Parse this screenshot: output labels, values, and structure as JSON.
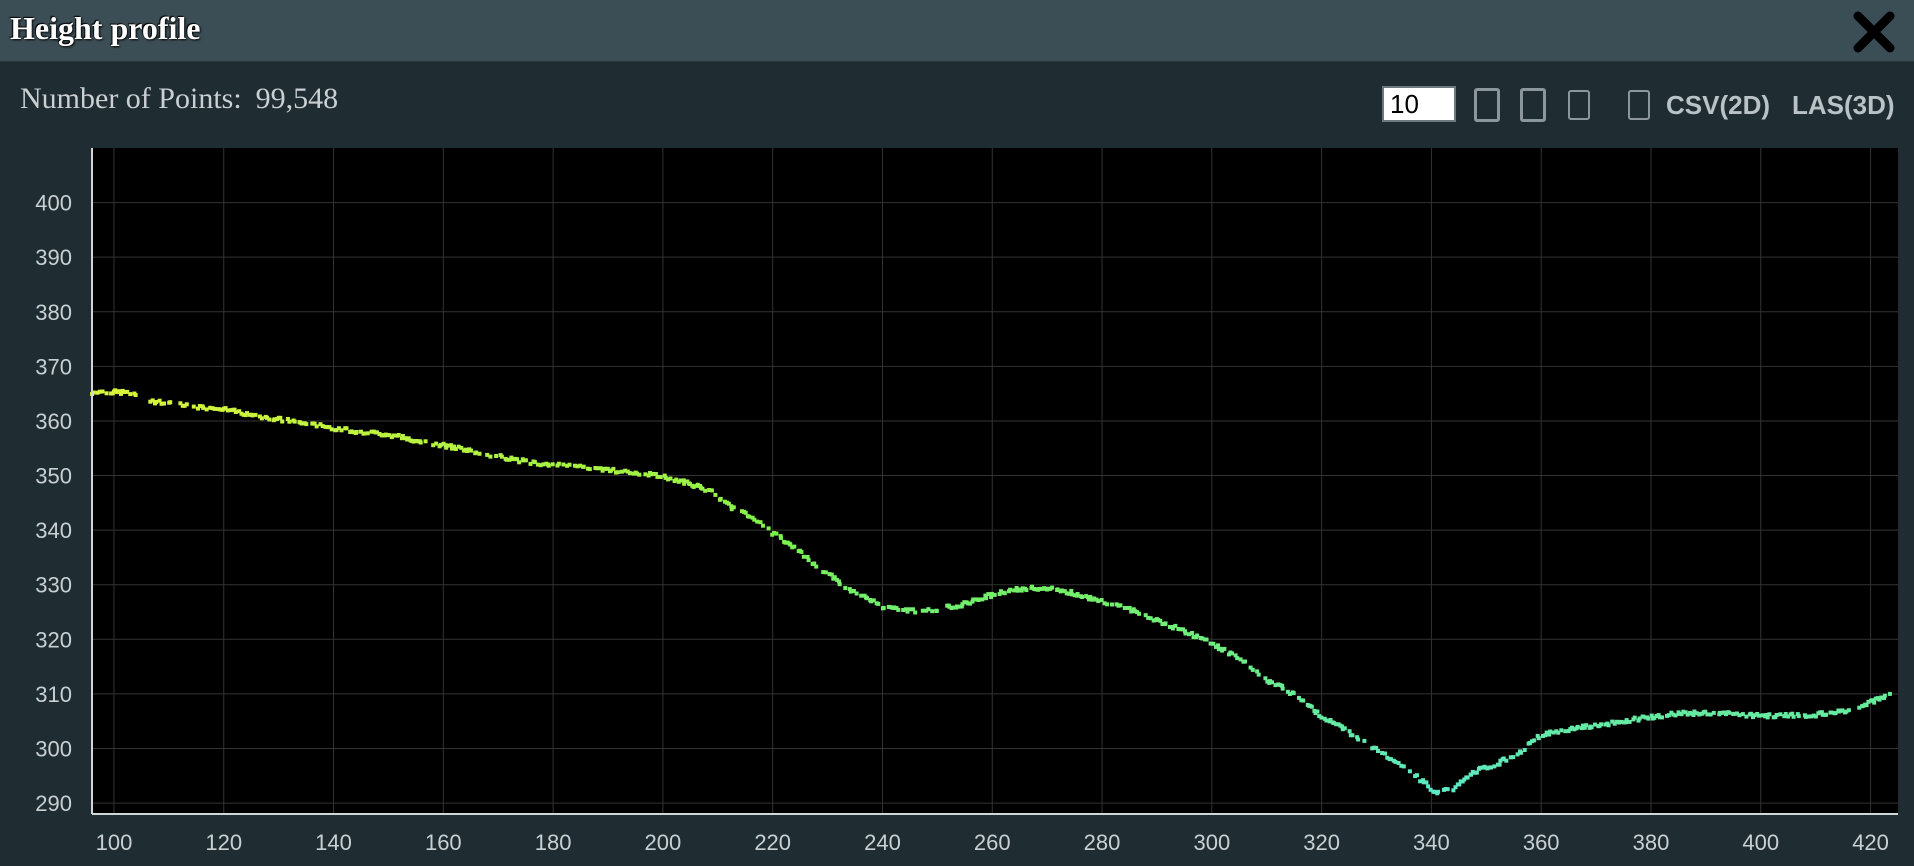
{
  "window": {
    "title": "Height profile"
  },
  "header": {
    "points_label": "Number of Points:",
    "points_value": "99,548"
  },
  "toolbar": {
    "point_budget_value": "10",
    "buttons": [
      "move-button",
      "zoom-button",
      "reset-button",
      "toggle-button"
    ],
    "csv_label": "CSV(2D)",
    "las_label": "LAS(3D)"
  },
  "chart_data": {
    "type": "scatter",
    "title": "",
    "xlabel": "",
    "ylabel": "",
    "xlim": [
      96,
      425
    ],
    "ylim": [
      288,
      410
    ],
    "x_ticks": [
      100,
      120,
      140,
      160,
      180,
      200,
      220,
      240,
      260,
      280,
      300,
      320,
      340,
      360,
      380,
      400,
      420
    ],
    "y_ticks": [
      290,
      300,
      310,
      320,
      330,
      340,
      350,
      360,
      370,
      380,
      390,
      400
    ],
    "grid": true,
    "background": "#000000",
    "grid_color": "#333333",
    "color_high": "#d8f43c",
    "color_mid": "#7cf24c",
    "color_low": "#5de8c8",
    "profile": [
      [
        96,
        365.2
      ],
      [
        99,
        365.3
      ],
      [
        103,
        365.2
      ],
      [
        107,
        363.6
      ],
      [
        112,
        363
      ],
      [
        118,
        362.3
      ],
      [
        122,
        361.8
      ],
      [
        126,
        361
      ],
      [
        130,
        360.3
      ],
      [
        135,
        359.5
      ],
      [
        140,
        358.7
      ],
      [
        145,
        358
      ],
      [
        150,
        357.5
      ],
      [
        155,
        356.5
      ],
      [
        160,
        355.5
      ],
      [
        165,
        354.5
      ],
      [
        170,
        353.5
      ],
      [
        175,
        352.5
      ],
      [
        180,
        352
      ],
      [
        185,
        351.5
      ],
      [
        190,
        351
      ],
      [
        195,
        350.5
      ],
      [
        200,
        349.8
      ],
      [
        205,
        348.5
      ],
      [
        209,
        347
      ],
      [
        212,
        344.5
      ],
      [
        216,
        342.5
      ],
      [
        220,
        339.5
      ],
      [
        225,
        336
      ],
      [
        230,
        332
      ],
      [
        235,
        328.5
      ],
      [
        240,
        326
      ],
      [
        245,
        325.2
      ],
      [
        250,
        325.5
      ],
      [
        255,
        326.5
      ],
      [
        260,
        328.2
      ],
      [
        265,
        329.2
      ],
      [
        270,
        329.4
      ],
      [
        275,
        328.4
      ],
      [
        280,
        327
      ],
      [
        285,
        325.5
      ],
      [
        290,
        323.5
      ],
      [
        295,
        321.5
      ],
      [
        300,
        319.2
      ],
      [
        305,
        316.5
      ],
      [
        310,
        312.5
      ],
      [
        315,
        310
      ],
      [
        320,
        306
      ],
      [
        325,
        303
      ],
      [
        330,
        299.8
      ],
      [
        335,
        296.8
      ],
      [
        339,
        293.5
      ],
      [
        341,
        291.8
      ],
      [
        344,
        292.6
      ],
      [
        348,
        295.8
      ],
      [
        352,
        297.2
      ],
      [
        356,
        299.2
      ],
      [
        360,
        302.5
      ],
      [
        365,
        303.5
      ],
      [
        370,
        304.2
      ],
      [
        375,
        305
      ],
      [
        380,
        305.8
      ],
      [
        385,
        306.4
      ],
      [
        390,
        306.5
      ],
      [
        395,
        306.3
      ],
      [
        400,
        306
      ],
      [
        405,
        306
      ],
      [
        410,
        306.2
      ],
      [
        415,
        306.8
      ],
      [
        420,
        308.5
      ],
      [
        424,
        310
      ]
    ]
  }
}
